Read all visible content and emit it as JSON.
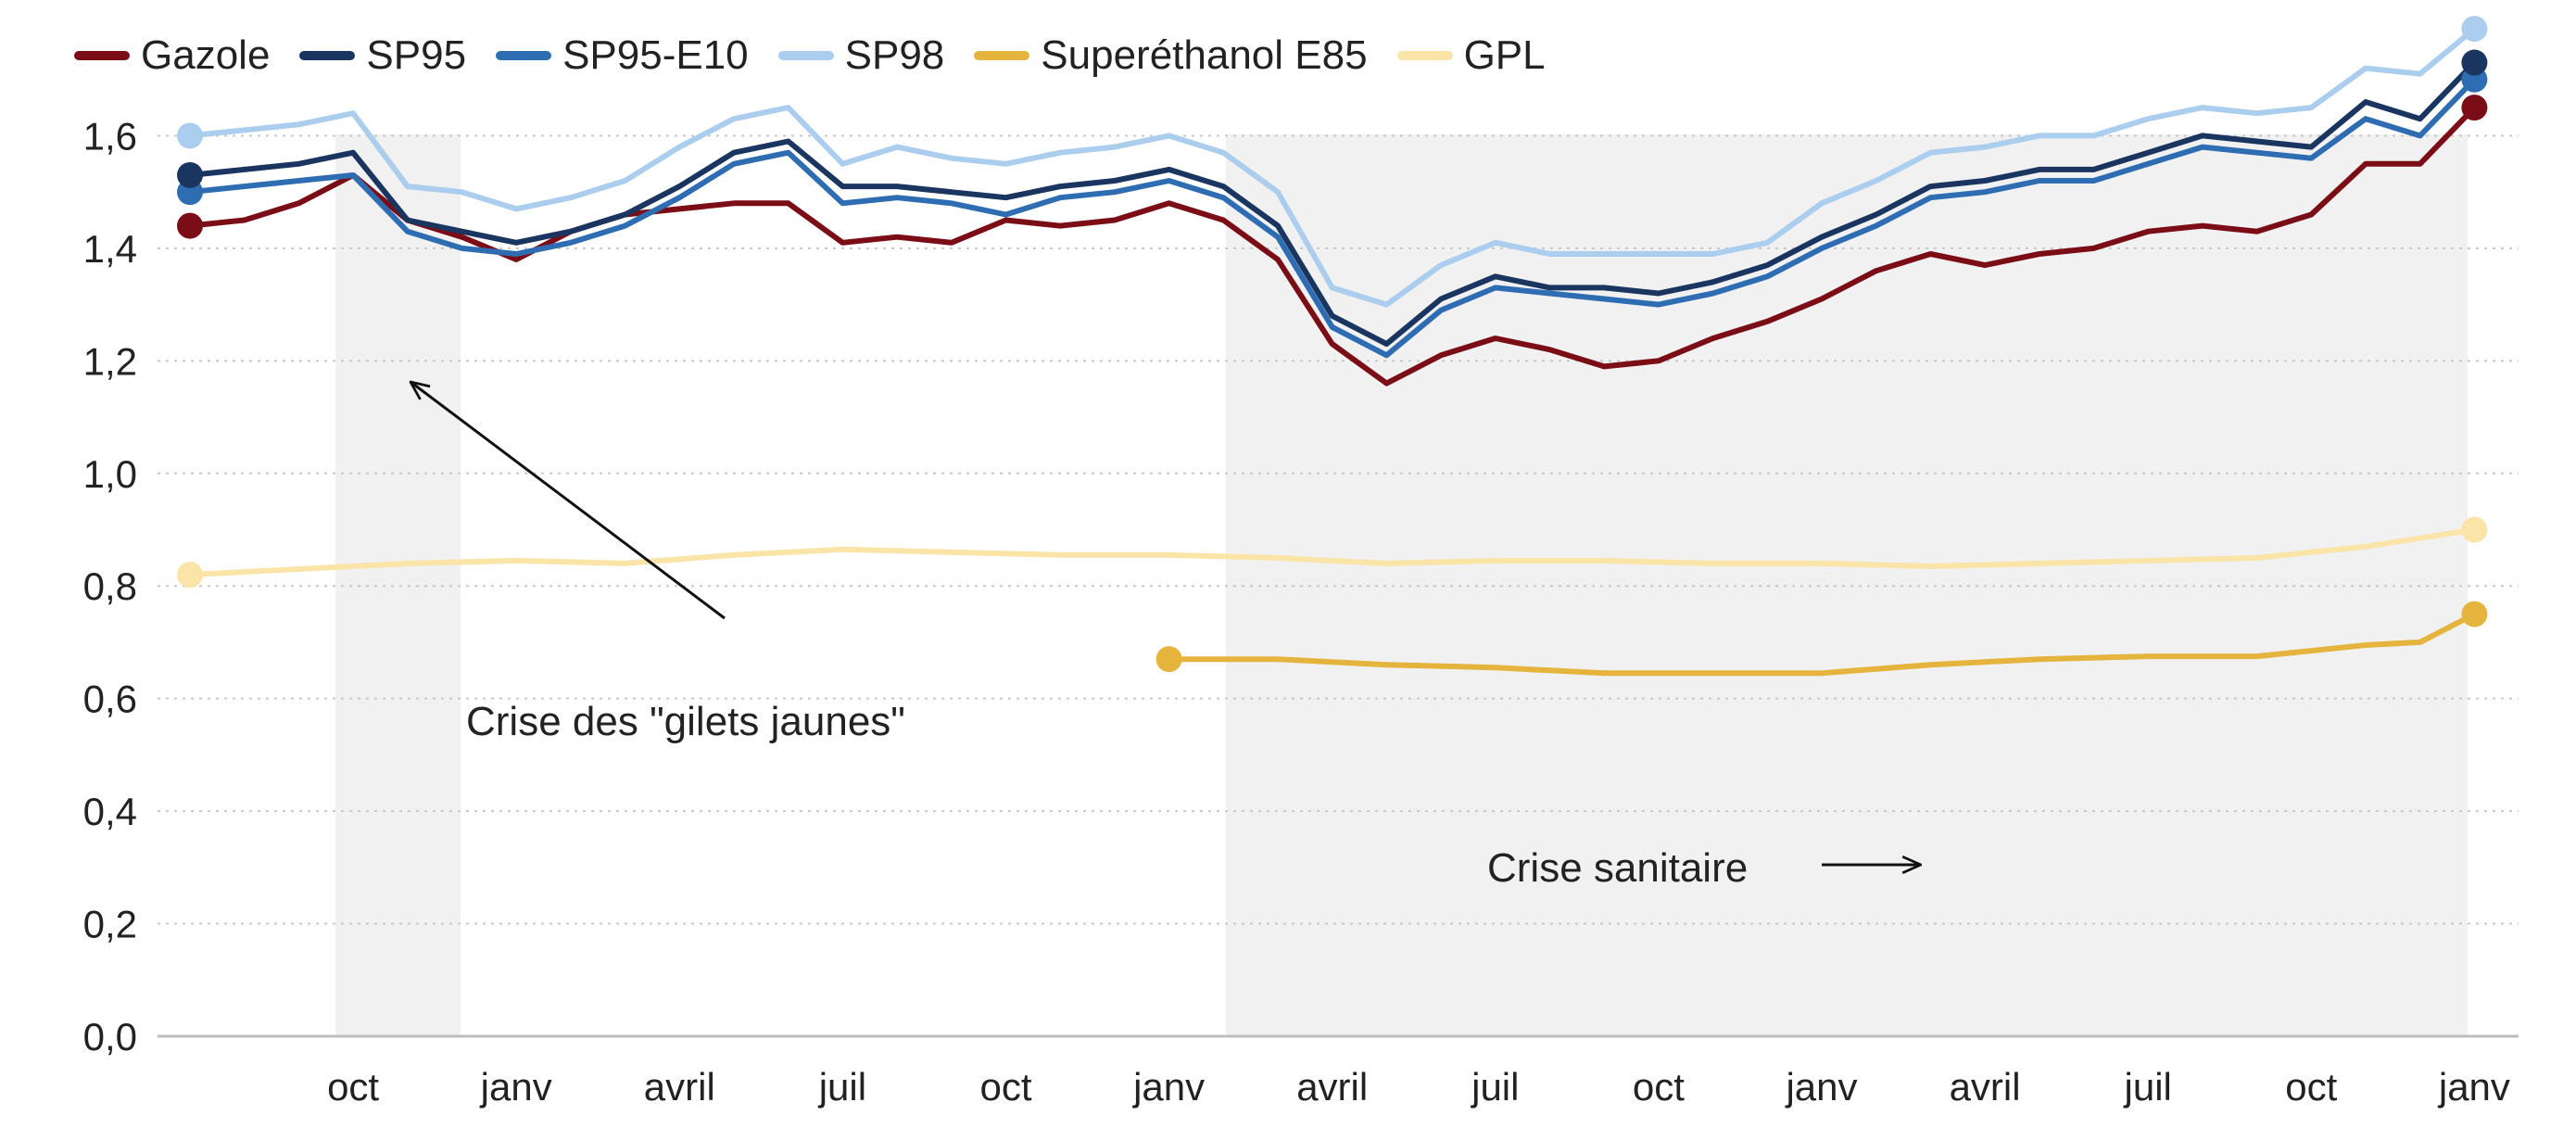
{
  "legend": [
    {
      "label": "Gazole",
      "color": "#7b0d17"
    },
    {
      "label": "SP95",
      "color": "#1a3560"
    },
    {
      "label": "SP95-E10",
      "color": "#2f6db3"
    },
    {
      "label": "SP98",
      "color": "#abcdee"
    },
    {
      "label": "Superéthanol E85",
      "color": "#e5b43c"
    },
    {
      "label": "GPL",
      "color": "#fbe4a8"
    }
  ],
  "annotations": {
    "gilets": "Crise des \"gilets jaunes\"",
    "sanitaire": "Crise sanitaire"
  },
  "chart_data": {
    "type": "line",
    "x_unit": "months",
    "x_start": "2018-07",
    "x_end": "2022-01",
    "xticks": [
      {
        "label": "oct",
        "x": "2018-10"
      },
      {
        "label": "janv",
        "x": "2019-01"
      },
      {
        "label": "avril",
        "x": "2019-04"
      },
      {
        "label": "juil",
        "x": "2019-07"
      },
      {
        "label": "oct",
        "x": "2019-10"
      },
      {
        "label": "janv",
        "x": "2020-01"
      },
      {
        "label": "avril",
        "x": "2020-04"
      },
      {
        "label": "juil",
        "x": "2020-07"
      },
      {
        "label": "oct",
        "x": "2020-10"
      },
      {
        "label": "janv",
        "x": "2021-01"
      },
      {
        "label": "avril",
        "x": "2021-04"
      },
      {
        "label": "juil",
        "x": "2021-07"
      },
      {
        "label": "oct",
        "x": "2021-10"
      },
      {
        "label": "janv",
        "x": "2022-01"
      }
    ],
    "ylim": [
      0,
      1.8
    ],
    "yticks": [
      {
        "value": 0.0,
        "label": "0,0"
      },
      {
        "value": 0.2,
        "label": "0,2"
      },
      {
        "value": 0.4,
        "label": "0,4"
      },
      {
        "value": 0.6,
        "label": "0,6"
      },
      {
        "value": 0.8,
        "label": "0,8"
      },
      {
        "value": 1.0,
        "label": "1,0"
      },
      {
        "value": 1.2,
        "label": "1,2"
      },
      {
        "value": 1.4,
        "label": "1,4"
      },
      {
        "value": 1.6,
        "label": "1,6"
      }
    ],
    "grid": "horizontal dotted",
    "shaded_periods": [
      {
        "from": "2018-11",
        "to": "2019-01"
      },
      {
        "from": "2020-03",
        "to": "2022-01"
      }
    ],
    "series": [
      {
        "name": "GPL",
        "color": "#fbe4a8",
        "x": [
          "2018-07",
          "2018-09",
          "2018-11",
          "2019-01",
          "2019-03",
          "2019-05",
          "2019-07",
          "2019-09",
          "2019-11",
          "2020-01",
          "2020-03",
          "2020-05",
          "2020-07",
          "2020-09",
          "2020-11",
          "2021-01",
          "2021-03",
          "2021-05",
          "2021-07",
          "2021-09",
          "2021-11",
          "2022-01"
        ],
        "values": [
          0.82,
          0.83,
          0.84,
          0.845,
          0.84,
          0.855,
          0.865,
          0.86,
          0.855,
          0.855,
          0.85,
          0.84,
          0.845,
          0.845,
          0.84,
          0.84,
          0.835,
          0.84,
          0.845,
          0.85,
          0.87,
          0.9
        ]
      },
      {
        "name": "Superéthanol E85",
        "color": "#e5b43c",
        "x": [
          "2020-01",
          "2020-03",
          "2020-05",
          "2020-07",
          "2020-08",
          "2020-09",
          "2020-11",
          "2021-01",
          "2021-03",
          "2021-05",
          "2021-07",
          "2021-09",
          "2021-11",
          "2021-12",
          "2022-01"
        ],
        "values": [
          0.67,
          0.67,
          0.66,
          0.655,
          0.65,
          0.645,
          0.645,
          0.645,
          0.66,
          0.67,
          0.675,
          0.675,
          0.695,
          0.7,
          0.75
        ]
      },
      {
        "name": "Gazole",
        "color": "#7b0d17",
        "x": [
          "2018-07",
          "2018-08",
          "2018-09",
          "2018-10",
          "2018-11",
          "2018-12",
          "2019-01",
          "2019-02",
          "2019-03",
          "2019-04",
          "2019-05",
          "2019-06",
          "2019-07",
          "2019-08",
          "2019-09",
          "2019-10",
          "2019-11",
          "2019-12",
          "2020-01",
          "2020-02",
          "2020-03",
          "2020-04",
          "2020-05",
          "2020-06",
          "2020-07",
          "2020-08",
          "2020-09",
          "2020-10",
          "2020-11",
          "2020-12",
          "2021-01",
          "2021-02",
          "2021-03",
          "2021-04",
          "2021-05",
          "2021-06",
          "2021-07",
          "2021-08",
          "2021-09",
          "2021-10",
          "2021-11",
          "2021-12",
          "2022-01"
        ],
        "values": [
          1.44,
          1.45,
          1.48,
          1.53,
          1.45,
          1.42,
          1.38,
          1.43,
          1.46,
          1.47,
          1.48,
          1.48,
          1.41,
          1.42,
          1.41,
          1.45,
          1.44,
          1.45,
          1.48,
          1.45,
          1.38,
          1.23,
          1.16,
          1.21,
          1.24,
          1.22,
          1.19,
          1.2,
          1.24,
          1.27,
          1.31,
          1.36,
          1.39,
          1.37,
          1.39,
          1.4,
          1.43,
          1.44,
          1.43,
          1.46,
          1.55,
          1.55,
          1.65
        ]
      },
      {
        "name": "SP95-E10",
        "color": "#2f6db3",
        "x": [
          "2018-07",
          "2018-09",
          "2018-10",
          "2018-11",
          "2018-12",
          "2019-01",
          "2019-02",
          "2019-03",
          "2019-04",
          "2019-05",
          "2019-06",
          "2019-07",
          "2019-08",
          "2019-09",
          "2019-10",
          "2019-11",
          "2019-12",
          "2020-01",
          "2020-02",
          "2020-03",
          "2020-04",
          "2020-05",
          "2020-06",
          "2020-07",
          "2020-08",
          "2020-09",
          "2020-10",
          "2020-11",
          "2020-12",
          "2021-01",
          "2021-02",
          "2021-03",
          "2021-04",
          "2021-05",
          "2021-06",
          "2021-07",
          "2021-08",
          "2021-09",
          "2021-10",
          "2021-11",
          "2021-12",
          "2022-01"
        ],
        "values": [
          1.5,
          1.52,
          1.53,
          1.43,
          1.4,
          1.39,
          1.41,
          1.44,
          1.49,
          1.55,
          1.57,
          1.48,
          1.49,
          1.48,
          1.46,
          1.49,
          1.5,
          1.52,
          1.49,
          1.42,
          1.26,
          1.21,
          1.29,
          1.33,
          1.32,
          1.31,
          1.3,
          1.32,
          1.35,
          1.4,
          1.44,
          1.49,
          1.5,
          1.52,
          1.52,
          1.55,
          1.58,
          1.57,
          1.56,
          1.63,
          1.6,
          1.7
        ]
      },
      {
        "name": "SP95",
        "color": "#1a3560",
        "x": [
          "2018-07",
          "2018-09",
          "2018-10",
          "2018-11",
          "2018-12",
          "2019-01",
          "2019-02",
          "2019-03",
          "2019-04",
          "2019-05",
          "2019-06",
          "2019-07",
          "2019-08",
          "2019-09",
          "2019-10",
          "2019-11",
          "2019-12",
          "2020-01",
          "2020-02",
          "2020-03",
          "2020-04",
          "2020-05",
          "2020-06",
          "2020-07",
          "2020-08",
          "2020-09",
          "2020-10",
          "2020-11",
          "2020-12",
          "2021-01",
          "2021-02",
          "2021-03",
          "2021-04",
          "2021-05",
          "2021-06",
          "2021-07",
          "2021-08",
          "2021-09",
          "2021-10",
          "2021-11",
          "2021-12",
          "2022-01"
        ],
        "values": [
          1.53,
          1.55,
          1.57,
          1.45,
          1.43,
          1.41,
          1.43,
          1.46,
          1.51,
          1.57,
          1.59,
          1.51,
          1.51,
          1.5,
          1.49,
          1.51,
          1.52,
          1.54,
          1.51,
          1.44,
          1.28,
          1.23,
          1.31,
          1.35,
          1.33,
          1.33,
          1.32,
          1.34,
          1.37,
          1.42,
          1.46,
          1.51,
          1.52,
          1.54,
          1.54,
          1.57,
          1.6,
          1.59,
          1.58,
          1.66,
          1.63,
          1.73
        ]
      },
      {
        "name": "SP98",
        "color": "#abcdee",
        "x": [
          "2018-07",
          "2018-09",
          "2018-10",
          "2018-11",
          "2018-12",
          "2019-01",
          "2019-02",
          "2019-03",
          "2019-04",
          "2019-05",
          "2019-06",
          "2019-07",
          "2019-08",
          "2019-09",
          "2019-10",
          "2019-11",
          "2019-12",
          "2020-01",
          "2020-02",
          "2020-03",
          "2020-04",
          "2020-05",
          "2020-06",
          "2020-07",
          "2020-08",
          "2020-09",
          "2020-10",
          "2020-11",
          "2020-12",
          "2021-01",
          "2021-02",
          "2021-03",
          "2021-04",
          "2021-05",
          "2021-06",
          "2021-07",
          "2021-08",
          "2021-09",
          "2021-10",
          "2021-11",
          "2021-12",
          "2022-01"
        ],
        "values": [
          1.6,
          1.62,
          1.64,
          1.51,
          1.5,
          1.47,
          1.49,
          1.52,
          1.58,
          1.63,
          1.65,
          1.55,
          1.58,
          1.56,
          1.55,
          1.57,
          1.58,
          1.6,
          1.57,
          1.5,
          1.33,
          1.3,
          1.37,
          1.41,
          1.39,
          1.39,
          1.39,
          1.39,
          1.41,
          1.48,
          1.52,
          1.57,
          1.58,
          1.6,
          1.6,
          1.63,
          1.65,
          1.64,
          1.65,
          1.72,
          1.71,
          1.79
        ]
      }
    ]
  }
}
